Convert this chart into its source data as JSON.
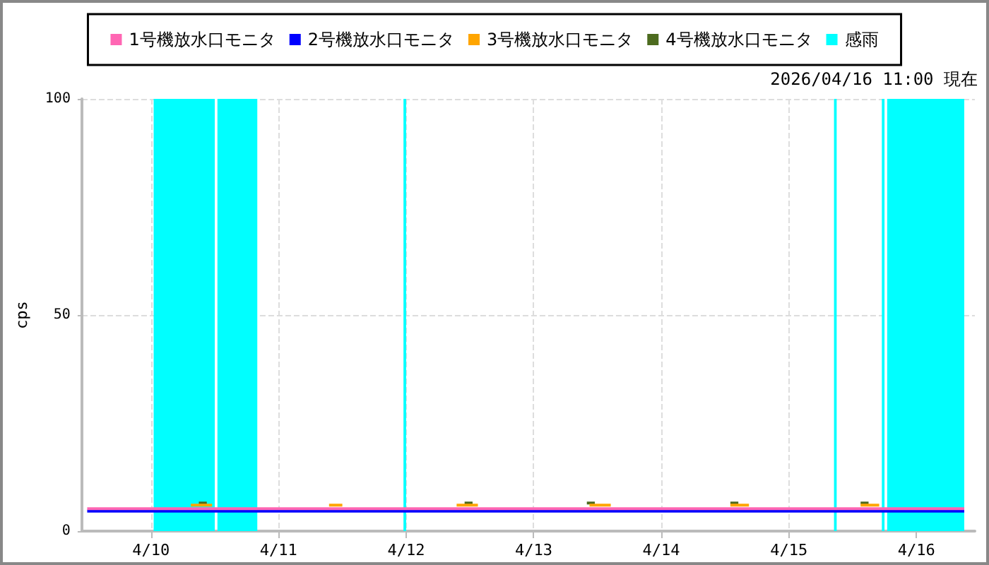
{
  "chart_data": {
    "type": "line",
    "ylabel": "cps",
    "annotations": [
      "2026/04/16 11:00 現在"
    ],
    "xlim": [
      "2026-04-09T11:00",
      "2026-04-16T11:00"
    ],
    "xticks": [
      {
        "value": "2026-04-10T00:00",
        "label": "4/10"
      },
      {
        "value": "2026-04-11T00:00",
        "label": "4/11"
      },
      {
        "value": "2026-04-12T00:00",
        "label": "4/12"
      },
      {
        "value": "2026-04-13T00:00",
        "label": "4/13"
      },
      {
        "value": "2026-04-14T00:00",
        "label": "4/14"
      },
      {
        "value": "2026-04-15T00:00",
        "label": "4/15"
      },
      {
        "value": "2026-04-16T00:00",
        "label": "4/16"
      }
    ],
    "ylim": [
      0,
      100
    ],
    "yticks": [
      0,
      50,
      100
    ],
    "grid": true,
    "legend": "top",
    "marker": "none",
    "line_style": "solid",
    "x": [
      "2026-04-09T12:00",
      "2026-04-09T15:00",
      "2026-04-09T18:00",
      "2026-04-09T21:00",
      "2026-04-10T00:00",
      "2026-04-10T03:00",
      "2026-04-10T06:00",
      "2026-04-10T09:00",
      "2026-04-10T12:00",
      "2026-04-10T15:00",
      "2026-04-10T18:00",
      "2026-04-10T21:00",
      "2026-04-11T00:00",
      "2026-04-11T03:00",
      "2026-04-11T06:00",
      "2026-04-11T09:00",
      "2026-04-11T12:00",
      "2026-04-11T15:00",
      "2026-04-11T18:00",
      "2026-04-11T21:00",
      "2026-04-12T00:00",
      "2026-04-12T03:00",
      "2026-04-12T06:00",
      "2026-04-12T09:00",
      "2026-04-12T12:00",
      "2026-04-12T15:00",
      "2026-04-12T18:00",
      "2026-04-12T21:00",
      "2026-04-13T00:00",
      "2026-04-13T03:00",
      "2026-04-13T06:00",
      "2026-04-13T09:00",
      "2026-04-13T12:00",
      "2026-04-13T15:00",
      "2026-04-13T18:00",
      "2026-04-13T21:00",
      "2026-04-14T00:00",
      "2026-04-14T03:00",
      "2026-04-14T06:00",
      "2026-04-14T09:00",
      "2026-04-14T12:00",
      "2026-04-14T15:00",
      "2026-04-14T18:00",
      "2026-04-14T21:00",
      "2026-04-15T00:00",
      "2026-04-15T03:00",
      "2026-04-15T06:00",
      "2026-04-15T09:00",
      "2026-04-15T12:00",
      "2026-04-15T15:00",
      "2026-04-15T18:00",
      "2026-04-15T21:00",
      "2026-04-16T00:00",
      "2026-04-16T03:00",
      "2026-04-16T06:00",
      "2026-04-16T09:00"
    ],
    "series": [
      {
        "name": "1号機放水口モニタ",
        "color": "#ff66b3",
        "values": [
          5.2,
          5.2,
          5.2,
          5.2,
          5.2,
          5.2,
          5.2,
          5.2,
          5.2,
          5.2,
          5.2,
          5.2,
          5.2,
          5.2,
          5.2,
          5.2,
          5.2,
          5.2,
          5.2,
          5.2,
          5.2,
          5.2,
          5.2,
          5.2,
          5.2,
          5.2,
          5.2,
          5.2,
          5.2,
          5.2,
          5.2,
          5.2,
          5.2,
          5.2,
          5.2,
          5.2,
          5.2,
          5.2,
          5.2,
          5.2,
          5.2,
          5.2,
          5.2,
          5.2,
          5.2,
          5.2,
          5.2,
          5.2,
          5.2,
          5.2,
          5.2,
          5.2,
          5.2,
          5.2,
          5.2,
          5.2
        ]
      },
      {
        "name": "2号機放水口モニタ",
        "color": "#0000ff",
        "values": [
          4.6,
          4.6,
          4.6,
          4.6,
          4.6,
          4.6,
          4.6,
          4.6,
          4.6,
          4.6,
          4.6,
          4.6,
          4.6,
          4.6,
          4.6,
          4.6,
          4.6,
          4.6,
          4.6,
          4.6,
          4.6,
          4.6,
          4.6,
          4.6,
          4.6,
          4.6,
          4.6,
          4.6,
          4.6,
          4.6,
          4.6,
          4.6,
          4.6,
          4.6,
          4.6,
          4.6,
          4.6,
          4.6,
          4.6,
          4.6,
          4.6,
          4.6,
          4.6,
          4.6,
          4.6,
          4.6,
          4.6,
          4.6,
          4.6,
          4.6,
          4.6,
          4.6,
          4.6,
          4.6,
          4.6,
          4.6
        ]
      },
      {
        "name": "3号機放水口モニタ",
        "color": "#ffa500",
        "x": [
          "2026-04-10T07:30",
          "2026-04-10T11:30",
          "2026-04-10T12:00",
          "2026-04-11T09:30",
          "2026-04-11T12:00",
          "2026-04-11T12:30",
          "2026-04-12T09:30",
          "2026-04-12T13:30",
          "2026-04-12T14:00",
          "2026-04-13T10:30",
          "2026-04-13T14:30",
          "2026-04-13T15:00",
          "2026-04-14T13:00",
          "2026-04-14T16:30",
          "2026-04-14T17:00",
          "2026-04-15T13:30",
          "2026-04-15T17:00"
        ],
        "values": [
          6.0,
          6.0,
          null,
          6.0,
          6.0,
          null,
          6.0,
          6.0,
          null,
          6.0,
          6.0,
          null,
          6.0,
          6.0,
          null,
          6.0,
          6.0
        ]
      },
      {
        "name": "4号機放水口モニタ",
        "color": "#4d6b1f",
        "x": [
          "2026-04-10T09:00",
          "2026-04-10T10:30",
          "2026-04-10T11:00",
          "2026-04-12T11:00",
          "2026-04-12T12:30",
          "2026-04-12T13:00",
          "2026-04-13T10:00",
          "2026-04-13T11:30",
          "2026-04-13T12:00",
          "2026-04-14T13:00",
          "2026-04-14T14:30",
          "2026-04-14T15:00",
          "2026-04-15T13:30",
          "2026-04-15T15:00"
        ],
        "values": [
          6.5,
          6.5,
          null,
          6.5,
          6.5,
          null,
          6.5,
          6.5,
          null,
          6.5,
          6.5,
          null,
          6.5,
          6.5
        ]
      },
      {
        "name": "感雨",
        "type": "area",
        "color": "#00ffff",
        "x": [
          "2026-04-10T00:30",
          "2026-04-10T12:00",
          "2026-04-10T12:15",
          "2026-04-10T12:30",
          "2026-04-10T20:00",
          "2026-04-10T20:30",
          "2026-04-11T23:30",
          "2026-04-12T00:00",
          "2026-04-12T00:15",
          "2026-04-15T08:30",
          "2026-04-15T09:00",
          "2026-04-15T09:15",
          "2026-04-15T17:30",
          "2026-04-15T18:00",
          "2026-04-15T18:15",
          "2026-04-15T18:30",
          "2026-04-16T09:00"
        ],
        "values": [
          100,
          100,
          null,
          100,
          100,
          null,
          100,
          100,
          null,
          100,
          100,
          null,
          100,
          100,
          null,
          100,
          100
        ]
      }
    ]
  }
}
